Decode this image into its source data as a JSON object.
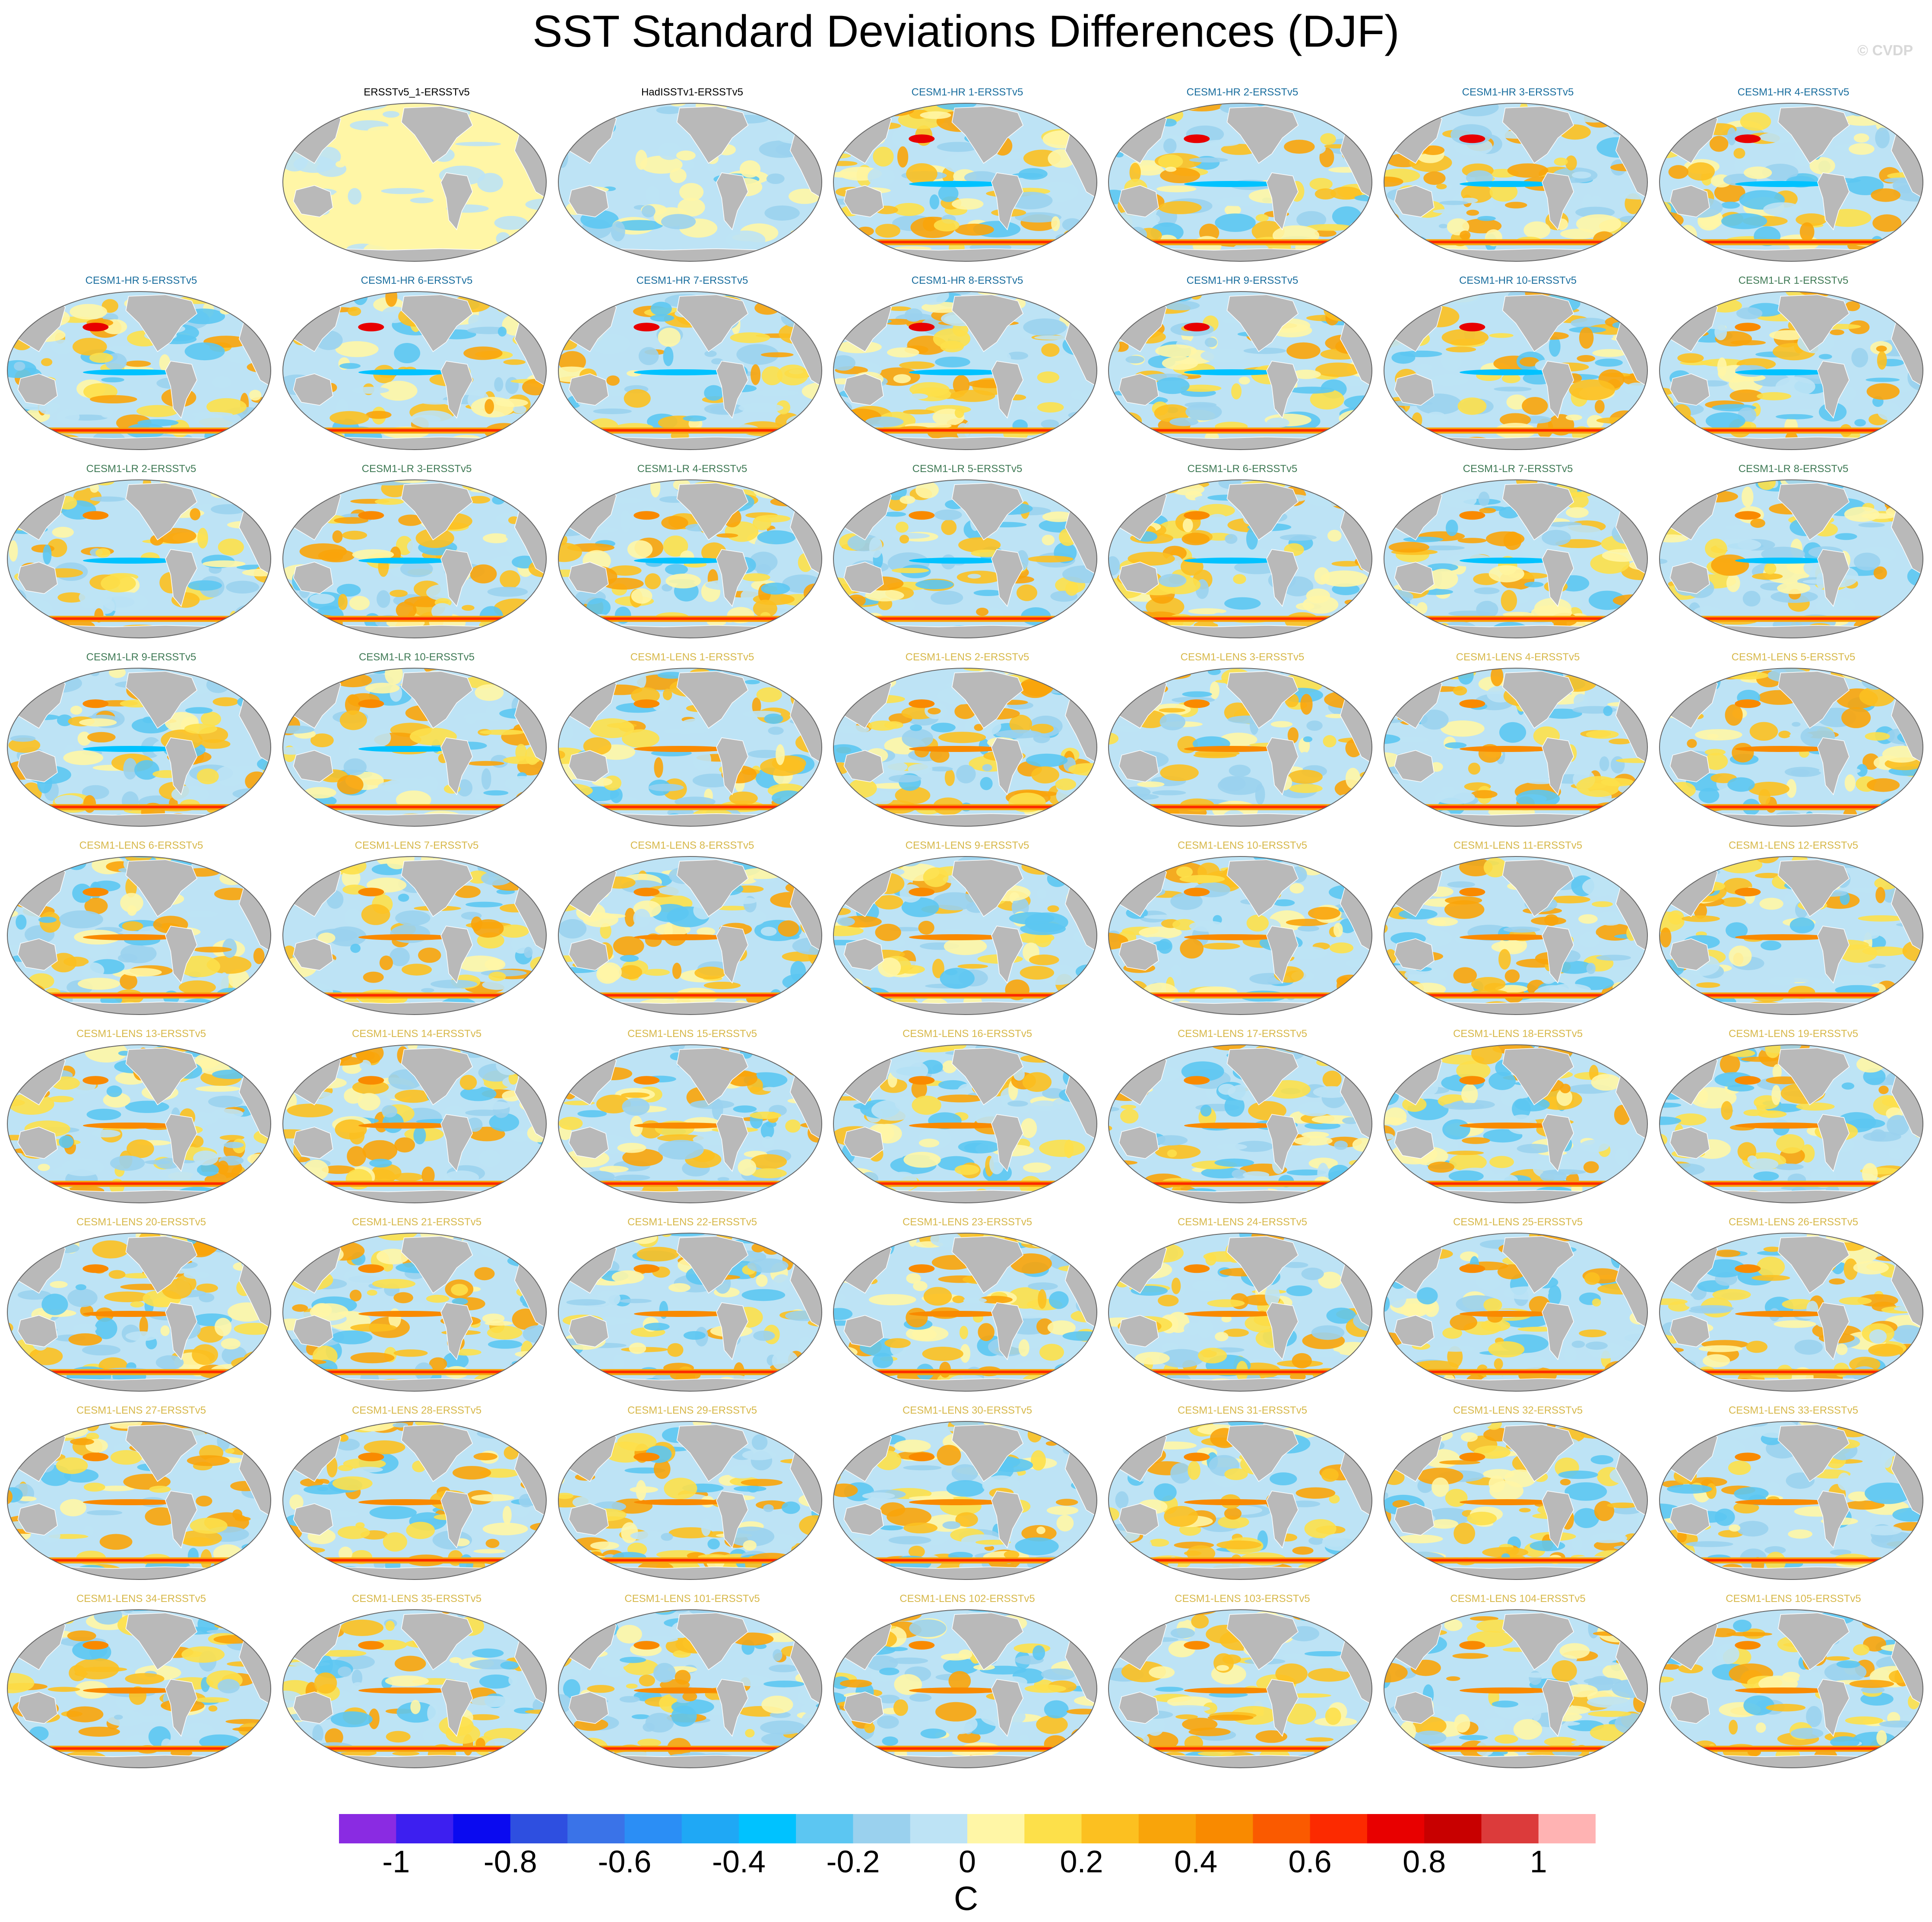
{
  "title": "SST Standard Deviations Differences (DJF)",
  "credit": "© CVDP",
  "units": "C",
  "colors": {
    "land": "#b9b9b9",
    "coast": "#ffffff",
    "outline": "#666666"
  },
  "colorbar": {
    "colors": [
      "#8a2be2",
      "#3d1ff0",
      "#0a0af0",
      "#2e4fe0",
      "#3a73e8",
      "#2b8ef5",
      "#1fa8f5",
      "#00c2ff",
      "#5cc6f2",
      "#9ad1ee",
      "#bde3f5",
      "#fff6a6",
      "#fde04a",
      "#fcc020",
      "#f9a40a",
      "#f98a00",
      "#fa5a00",
      "#fc2a00",
      "#e80000",
      "#c80000",
      "#dc3b3b",
      "#ffb3b3"
    ],
    "tick_labels": [
      "-1",
      "-0.8",
      "-0.6",
      "-0.4",
      "-0.2",
      "0",
      "0.2",
      "0.4",
      "0.6",
      "0.8",
      "1"
    ]
  },
  "panels": [
    {
      "label": "ERSSTv5_1-ERSSTv5",
      "group": "obs"
    },
    {
      "label": "HadISSTv1-ERSSTv5",
      "group": "obs"
    },
    {
      "label": "CESM1-HR 1-ERSSTv5",
      "group": "hr"
    },
    {
      "label": "CESM1-HR 2-ERSSTv5",
      "group": "hr"
    },
    {
      "label": "CESM1-HR 3-ERSSTv5",
      "group": "hr"
    },
    {
      "label": "CESM1-HR 4-ERSSTv5",
      "group": "hr"
    },
    {
      "label": "CESM1-HR 5-ERSSTv5",
      "group": "hr"
    },
    {
      "label": "CESM1-HR 6-ERSSTv5",
      "group": "hr"
    },
    {
      "label": "CESM1-HR 7-ERSSTv5",
      "group": "hr"
    },
    {
      "label": "CESM1-HR 8-ERSSTv5",
      "group": "hr"
    },
    {
      "label": "CESM1-HR 9-ERSSTv5",
      "group": "hr"
    },
    {
      "label": "CESM1-HR 10-ERSSTv5",
      "group": "hr"
    },
    {
      "label": "CESM1-LR 1-ERSSTv5",
      "group": "lr"
    },
    {
      "label": "CESM1-LR 2-ERSSTv5",
      "group": "lr"
    },
    {
      "label": "CESM1-LR 3-ERSSTv5",
      "group": "lr"
    },
    {
      "label": "CESM1-LR 4-ERSSTv5",
      "group": "lr"
    },
    {
      "label": "CESM1-LR 5-ERSSTv5",
      "group": "lr"
    },
    {
      "label": "CESM1-LR 6-ERSSTv5",
      "group": "lr"
    },
    {
      "label": "CESM1-LR 7-ERSSTv5",
      "group": "lr"
    },
    {
      "label": "CESM1-LR 8-ERSSTv5",
      "group": "lr"
    },
    {
      "label": "CESM1-LR 9-ERSSTv5",
      "group": "lr"
    },
    {
      "label": "CESM1-LR 10-ERSSTv5",
      "group": "lr"
    },
    {
      "label": "CESM1-LENS 1-ERSSTv5",
      "group": "lens"
    },
    {
      "label": "CESM1-LENS 2-ERSSTv5",
      "group": "lens"
    },
    {
      "label": "CESM1-LENS 3-ERSSTv5",
      "group": "lens"
    },
    {
      "label": "CESM1-LENS 4-ERSSTv5",
      "group": "lens"
    },
    {
      "label": "CESM1-LENS 5-ERSSTv5",
      "group": "lens"
    },
    {
      "label": "CESM1-LENS 6-ERSSTv5",
      "group": "lens"
    },
    {
      "label": "CESM1-LENS 7-ERSSTv5",
      "group": "lens"
    },
    {
      "label": "CESM1-LENS 8-ERSSTv5",
      "group": "lens"
    },
    {
      "label": "CESM1-LENS 9-ERSSTv5",
      "group": "lens"
    },
    {
      "label": "CESM1-LENS 10-ERSSTv5",
      "group": "lens"
    },
    {
      "label": "CESM1-LENS 11-ERSSTv5",
      "group": "lens"
    },
    {
      "label": "CESM1-LENS 12-ERSSTv5",
      "group": "lens"
    },
    {
      "label": "CESM1-LENS 13-ERSSTv5",
      "group": "lens"
    },
    {
      "label": "CESM1-LENS 14-ERSSTv5",
      "group": "lens"
    },
    {
      "label": "CESM1-LENS 15-ERSSTv5",
      "group": "lens"
    },
    {
      "label": "CESM1-LENS 16-ERSSTv5",
      "group": "lens"
    },
    {
      "label": "CESM1-LENS 17-ERSSTv5",
      "group": "lens"
    },
    {
      "label": "CESM1-LENS 18-ERSSTv5",
      "group": "lens"
    },
    {
      "label": "CESM1-LENS 19-ERSSTv5",
      "group": "lens"
    },
    {
      "label": "CESM1-LENS 20-ERSSTv5",
      "group": "lens"
    },
    {
      "label": "CESM1-LENS 21-ERSSTv5",
      "group": "lens"
    },
    {
      "label": "CESM1-LENS 22-ERSSTv5",
      "group": "lens"
    },
    {
      "label": "CESM1-LENS 23-ERSSTv5",
      "group": "lens"
    },
    {
      "label": "CESM1-LENS 24-ERSSTv5",
      "group": "lens"
    },
    {
      "label": "CESM1-LENS 25-ERSSTv5",
      "group": "lens"
    },
    {
      "label": "CESM1-LENS 26-ERSSTv5",
      "group": "lens"
    },
    {
      "label": "CESM1-LENS 27-ERSSTv5",
      "group": "lens"
    },
    {
      "label": "CESM1-LENS 28-ERSSTv5",
      "group": "lens"
    },
    {
      "label": "CESM1-LENS 29-ERSSTv5",
      "group": "lens"
    },
    {
      "label": "CESM1-LENS 30-ERSSTv5",
      "group": "lens"
    },
    {
      "label": "CESM1-LENS 31-ERSSTv5",
      "group": "lens"
    },
    {
      "label": "CESM1-LENS 32-ERSSTv5",
      "group": "lens"
    },
    {
      "label": "CESM1-LENS 33-ERSSTv5",
      "group": "lens"
    },
    {
      "label": "CESM1-LENS 34-ERSSTv5",
      "group": "lens"
    },
    {
      "label": "CESM1-LENS 35-ERSSTv5",
      "group": "lens"
    },
    {
      "label": "CESM1-LENS 101-ERSSTv5",
      "group": "lens"
    },
    {
      "label": "CESM1-LENS 102-ERSSTv5",
      "group": "lens"
    },
    {
      "label": "CESM1-LENS 103-ERSSTv5",
      "group": "lens"
    },
    {
      "label": "CESM1-LENS 104-ERSSTv5",
      "group": "lens"
    },
    {
      "label": "CESM1-LENS 105-ERSSTv5",
      "group": "lens"
    }
  ]
}
